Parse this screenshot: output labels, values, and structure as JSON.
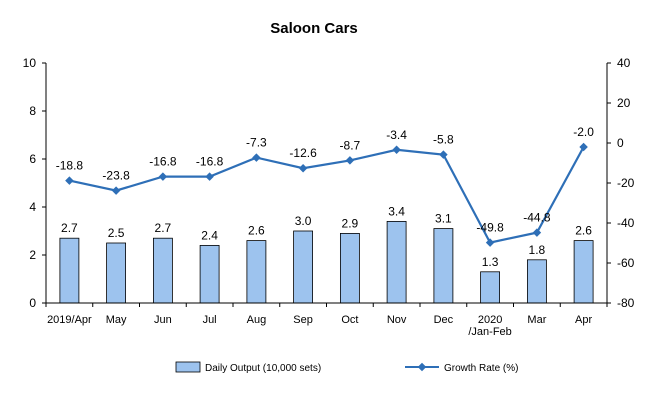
{
  "chart_data": {
    "type": "bar+line",
    "title": "Saloon Cars",
    "categories": [
      [
        "2019/Apr"
      ],
      [
        "May"
      ],
      [
        "Jun"
      ],
      [
        "Jul"
      ],
      [
        "Aug"
      ],
      [
        "Sep"
      ],
      [
        "Oct"
      ],
      [
        "Nov"
      ],
      [
        "Dec"
      ],
      [
        "2020",
        "/Jan-Feb"
      ],
      [
        "Mar"
      ],
      [
        "Apr"
      ]
    ],
    "series": [
      {
        "name": "Daily Output (10,000 sets)",
        "type": "bar",
        "axis": "left",
        "values": [
          2.7,
          2.5,
          2.7,
          2.4,
          2.6,
          3.0,
          2.9,
          3.4,
          3.1,
          1.3,
          1.8,
          2.6
        ],
        "labels": [
          "2.7",
          "2.5",
          "2.7",
          "2.4",
          "2.6",
          "3.0",
          "2.9",
          "3.4",
          "3.1",
          "1.3",
          "1.8",
          "2.6"
        ]
      },
      {
        "name": "Growth Rate (%)",
        "type": "line",
        "axis": "right",
        "values": [
          -18.8,
          -23.8,
          -16.8,
          -16.8,
          -7.3,
          -12.6,
          -8.7,
          -3.4,
          -5.8,
          -49.8,
          -44.8,
          -2.0
        ],
        "labels": [
          "-18.8",
          "-23.8",
          "-16.8",
          "-16.8",
          "-7.3",
          "-12.6",
          "-8.7",
          "-3.4",
          "-5.8",
          "-49.8",
          "-44.8",
          "-2.0"
        ]
      }
    ],
    "y_left": {
      "range": [
        0,
        10
      ],
      "ticks": [
        "0",
        "2",
        "4",
        "6",
        "8",
        "10"
      ]
    },
    "y_right": {
      "range": [
        -80,
        40
      ],
      "ticks": [
        "-80",
        "-60",
        "-40",
        "-20",
        "0",
        "20",
        "40"
      ]
    },
    "grid": false,
    "legend_position": "bottom",
    "colors": {
      "bar_fill": "#9DC3EE",
      "bar_stroke": "#000000",
      "line": "#2E6FB7",
      "axis": "#000000"
    }
  }
}
